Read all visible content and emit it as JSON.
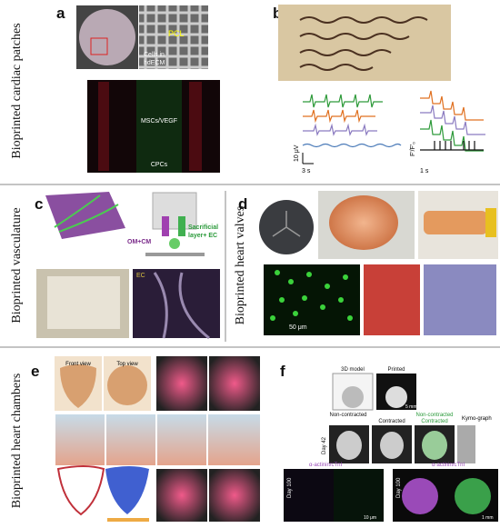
{
  "rows": [
    {
      "label": "Bioprinted cardiac patches"
    },
    {
      "label": "Bioprinted vasculature"
    },
    {
      "label": "Bioprinted heart valves"
    },
    {
      "label": "Bioprinted heart chambers"
    }
  ],
  "panels": {
    "a": {
      "letter": "a",
      "pcl": "PCL",
      "cells": "Cells in",
      "hdecm": "hdECM",
      "mscs": "MSCs/VEGF",
      "cpcs": "CPCs"
    },
    "b": {
      "letter": "b",
      "volt": "10 μV",
      "time1": "3 s",
      "ratio": "F'/F'₀",
      "time2": "1 s"
    },
    "c": {
      "letter": "c",
      "omcm": "OM+CM",
      "sac1": "Sacrificial",
      "sac2": "layer+ EC",
      "ec": "EC"
    },
    "d": {
      "letter": "d",
      "scale": "50 μm"
    },
    "e": {
      "letter": "e",
      "front": "Front view",
      "top": "Top view"
    },
    "f": {
      "letter": "f",
      "model": "3D model",
      "printed": "Printed",
      "mm5": "5 mm",
      "noncon": "Non-contracted",
      "con": "Contracted",
      "noncon2": "Non-contracted",
      "con2": "Contracted",
      "kymo": "Kymo-graph",
      "day42": "Day 42",
      "day100a": "Day 100",
      "day100b": "Day 100",
      "stain1": "α-actinin/cTnI",
      "stain2": "α-actinin/cTnI",
      "um10": "10 μm",
      "mm1": "1 mm"
    }
  }
}
